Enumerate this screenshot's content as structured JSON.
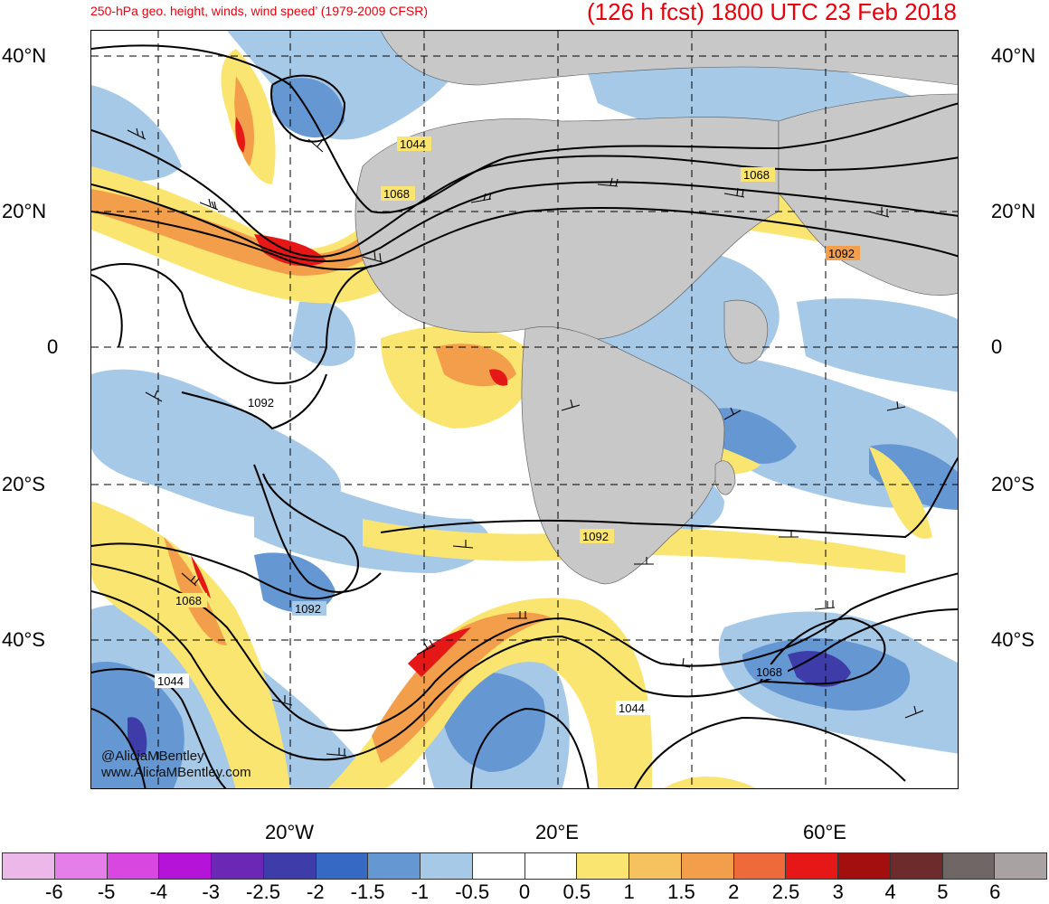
{
  "title": {
    "left": "250-hPa geo. height, winds, wind speed’ (1979-2009 CFSR)",
    "right": "(126 h fcst) 1800 UTC 23 Feb 2018"
  },
  "lat_labels": [
    "40°N",
    "20°N",
    "0",
    "20°S",
    "40°S"
  ],
  "lon_labels": [
    "20°W",
    "20°E",
    "60°E"
  ],
  "contour_labels": [
    "1044",
    "1068",
    "1092",
    "1092",
    "1068",
    "1044",
    "1068",
    "1092",
    "1044",
    "1068",
    "1092"
  ],
  "credits": [
    "@AliciaMBentley",
    "www.AliciaMBentley.com"
  ],
  "colorbar": {
    "colors": [
      "#ecb8ea",
      "#e57ee8",
      "#d847e0",
      "#b514d8",
      "#6a28b4",
      "#3d3ca8",
      "#3669c4",
      "#6597d2",
      "#a6c9e8",
      "#ffffff",
      "#ffffff",
      "#fbe571",
      "#f6c25f",
      "#f39e4b",
      "#ef6a3a",
      "#e61717",
      "#a30f0f",
      "#6e2b2b",
      "#6f6766",
      "#a8a2a2"
    ],
    "labels": [
      "-6",
      "-5",
      "-4",
      "-3",
      "-2.5",
      "-2",
      "-1.5",
      "-1",
      "-0.5",
      "0",
      "0.5",
      "1",
      "1.5",
      "2",
      "2.5",
      "3",
      "4",
      "5",
      "6"
    ]
  },
  "colors": {
    "title": "#e8000b",
    "land": "#c8c8c8",
    "contour": "#000000"
  }
}
